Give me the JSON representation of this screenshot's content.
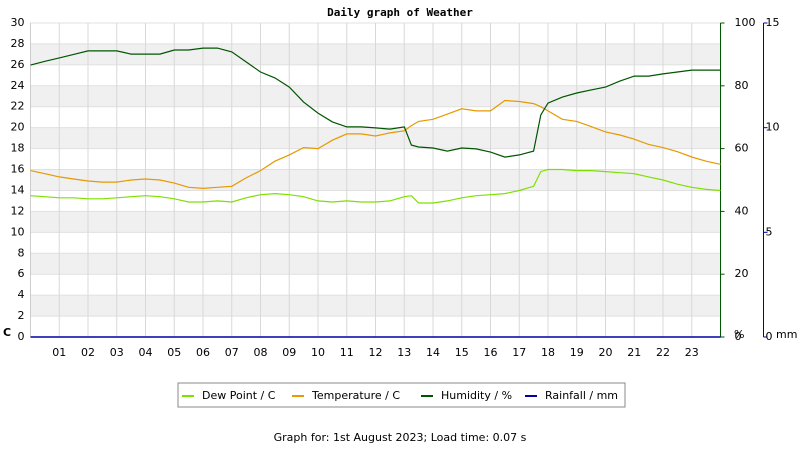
{
  "chart_data": {
    "type": "line",
    "title": "Daily graph of Weather",
    "footer": "Graph for: 1st August 2023; Load time: 0.07 s",
    "y_label": "C",
    "y2_label": "%",
    "y3_label": "mm",
    "x": [
      0,
      0.5,
      1,
      1.5,
      2,
      2.5,
      3,
      3.5,
      4,
      4.5,
      5,
      5.5,
      6,
      6.5,
      7,
      7.5,
      8,
      8.5,
      9,
      9.5,
      10,
      10.5,
      11,
      11.5,
      12,
      12.5,
      13,
      13.25,
      13.5,
      14,
      14.5,
      15,
      15.5,
      16,
      16.5,
      17,
      17.5,
      17.75,
      18,
      18.5,
      19,
      19.5,
      20,
      20.5,
      21,
      21.5,
      22,
      22.5,
      23,
      23.5,
      24
    ],
    "xlim": [
      0,
      24
    ],
    "xticks": [
      {
        "value": 1,
        "label": "01"
      },
      {
        "value": 2,
        "label": "02"
      },
      {
        "value": 3,
        "label": "03"
      },
      {
        "value": 4,
        "label": "04"
      },
      {
        "value": 5,
        "label": "05"
      },
      {
        "value": 6,
        "label": "06"
      },
      {
        "value": 7,
        "label": "07"
      },
      {
        "value": 8,
        "label": "08"
      },
      {
        "value": 9,
        "label": "09"
      },
      {
        "value": 10,
        "label": "10"
      },
      {
        "value": 11,
        "label": "11"
      },
      {
        "value": 12,
        "label": "12"
      },
      {
        "value": 13,
        "label": "13"
      },
      {
        "value": 14,
        "label": "14"
      },
      {
        "value": 15,
        "label": "15"
      },
      {
        "value": 16,
        "label": "16"
      },
      {
        "value": 17,
        "label": "17"
      },
      {
        "value": 18,
        "label": "18"
      },
      {
        "value": 19,
        "label": "19"
      },
      {
        "value": 20,
        "label": "20"
      },
      {
        "value": 21,
        "label": "21"
      },
      {
        "value": 22,
        "label": "22"
      },
      {
        "value": 23,
        "label": "23"
      }
    ],
    "ylim": [
      0,
      30
    ],
    "yticks": [
      0,
      2,
      4,
      6,
      8,
      10,
      12,
      14,
      16,
      18,
      20,
      22,
      24,
      26,
      28,
      30
    ],
    "ytick_color": "#e69900",
    "y2lim": [
      0,
      100
    ],
    "y2ticks": [
      0,
      20,
      40,
      60,
      80,
      100
    ],
    "y2tick_color": "#005500",
    "y3lim": [
      0,
      15
    ],
    "y3ticks": [
      0,
      5,
      10,
      15
    ],
    "y3tick_color": "#0000aa",
    "grid": true,
    "series": [
      {
        "name": "Dew Point / C",
        "color": "#7ee000",
        "values": [
          13.5,
          13.4,
          13.3,
          13.3,
          13.2,
          13.2,
          13.3,
          13.4,
          13.5,
          13.4,
          13.2,
          12.9,
          12.9,
          13.0,
          12.9,
          13.3,
          13.6,
          13.7,
          13.6,
          13.4,
          13.0,
          12.9,
          13.0,
          12.9,
          12.9,
          13.0,
          13.4,
          13.5,
          12.8,
          12.8,
          13.0,
          13.3,
          13.5,
          13.6,
          13.7,
          14.0,
          14.4,
          15.8,
          16.0,
          16.0,
          15.9,
          15.9,
          15.8,
          15.7,
          15.6,
          15.3,
          15.0,
          14.6,
          14.3,
          14.1,
          14.0
        ]
      },
      {
        "name": "Temperature / C",
        "color": "#e69900",
        "values": [
          15.9,
          15.6,
          15.3,
          15.1,
          14.9,
          14.8,
          14.8,
          15.0,
          15.1,
          15.0,
          14.7,
          14.3,
          14.2,
          14.3,
          14.4,
          15.2,
          15.9,
          16.8,
          17.4,
          18.1,
          18.0,
          18.8,
          19.4,
          19.4,
          19.2,
          19.5,
          19.7,
          20.2,
          20.6,
          20.8,
          21.3,
          21.8,
          21.6,
          21.6,
          22.6,
          22.5,
          22.3,
          22.0,
          21.6,
          20.8,
          20.6,
          20.1,
          19.6,
          19.3,
          18.9,
          18.4,
          18.1,
          17.7,
          17.2,
          16.8,
          16.5
        ]
      },
      {
        "name": "Humidity / %",
        "color": "#005500",
        "axis": "y2",
        "values": [
          86.6,
          87.8,
          88.9,
          90.0,
          91.1,
          91.1,
          91.1,
          90.1,
          90.1,
          90.1,
          91.4,
          91.4,
          92.0,
          92.0,
          90.8,
          87.6,
          84.4,
          82.5,
          79.6,
          74.8,
          71.3,
          68.5,
          66.9,
          66.9,
          66.6,
          66.2,
          66.9,
          61.1,
          60.5,
          60.2,
          59.2,
          60.2,
          59.9,
          58.9,
          57.3,
          58.0,
          59.2,
          70.7,
          74.5,
          76.4,
          77.7,
          78.7,
          79.6,
          81.5,
          83.1,
          83.1,
          83.8,
          84.4,
          85.0,
          85.0,
          85.0
        ]
      },
      {
        "name": "Rainfall / mm",
        "color": "#0000aa",
        "axis": "y3",
        "values": [
          0,
          0,
          0,
          0,
          0,
          0,
          0,
          0,
          0,
          0,
          0,
          0,
          0,
          0,
          0,
          0,
          0,
          0,
          0,
          0,
          0,
          0,
          0,
          0,
          0,
          0,
          0,
          0,
          0,
          0,
          0,
          0,
          0,
          0,
          0,
          0,
          0,
          0,
          0,
          0,
          0,
          0,
          0,
          0,
          0,
          0,
          0,
          0,
          0,
          0,
          0
        ]
      }
    ]
  }
}
